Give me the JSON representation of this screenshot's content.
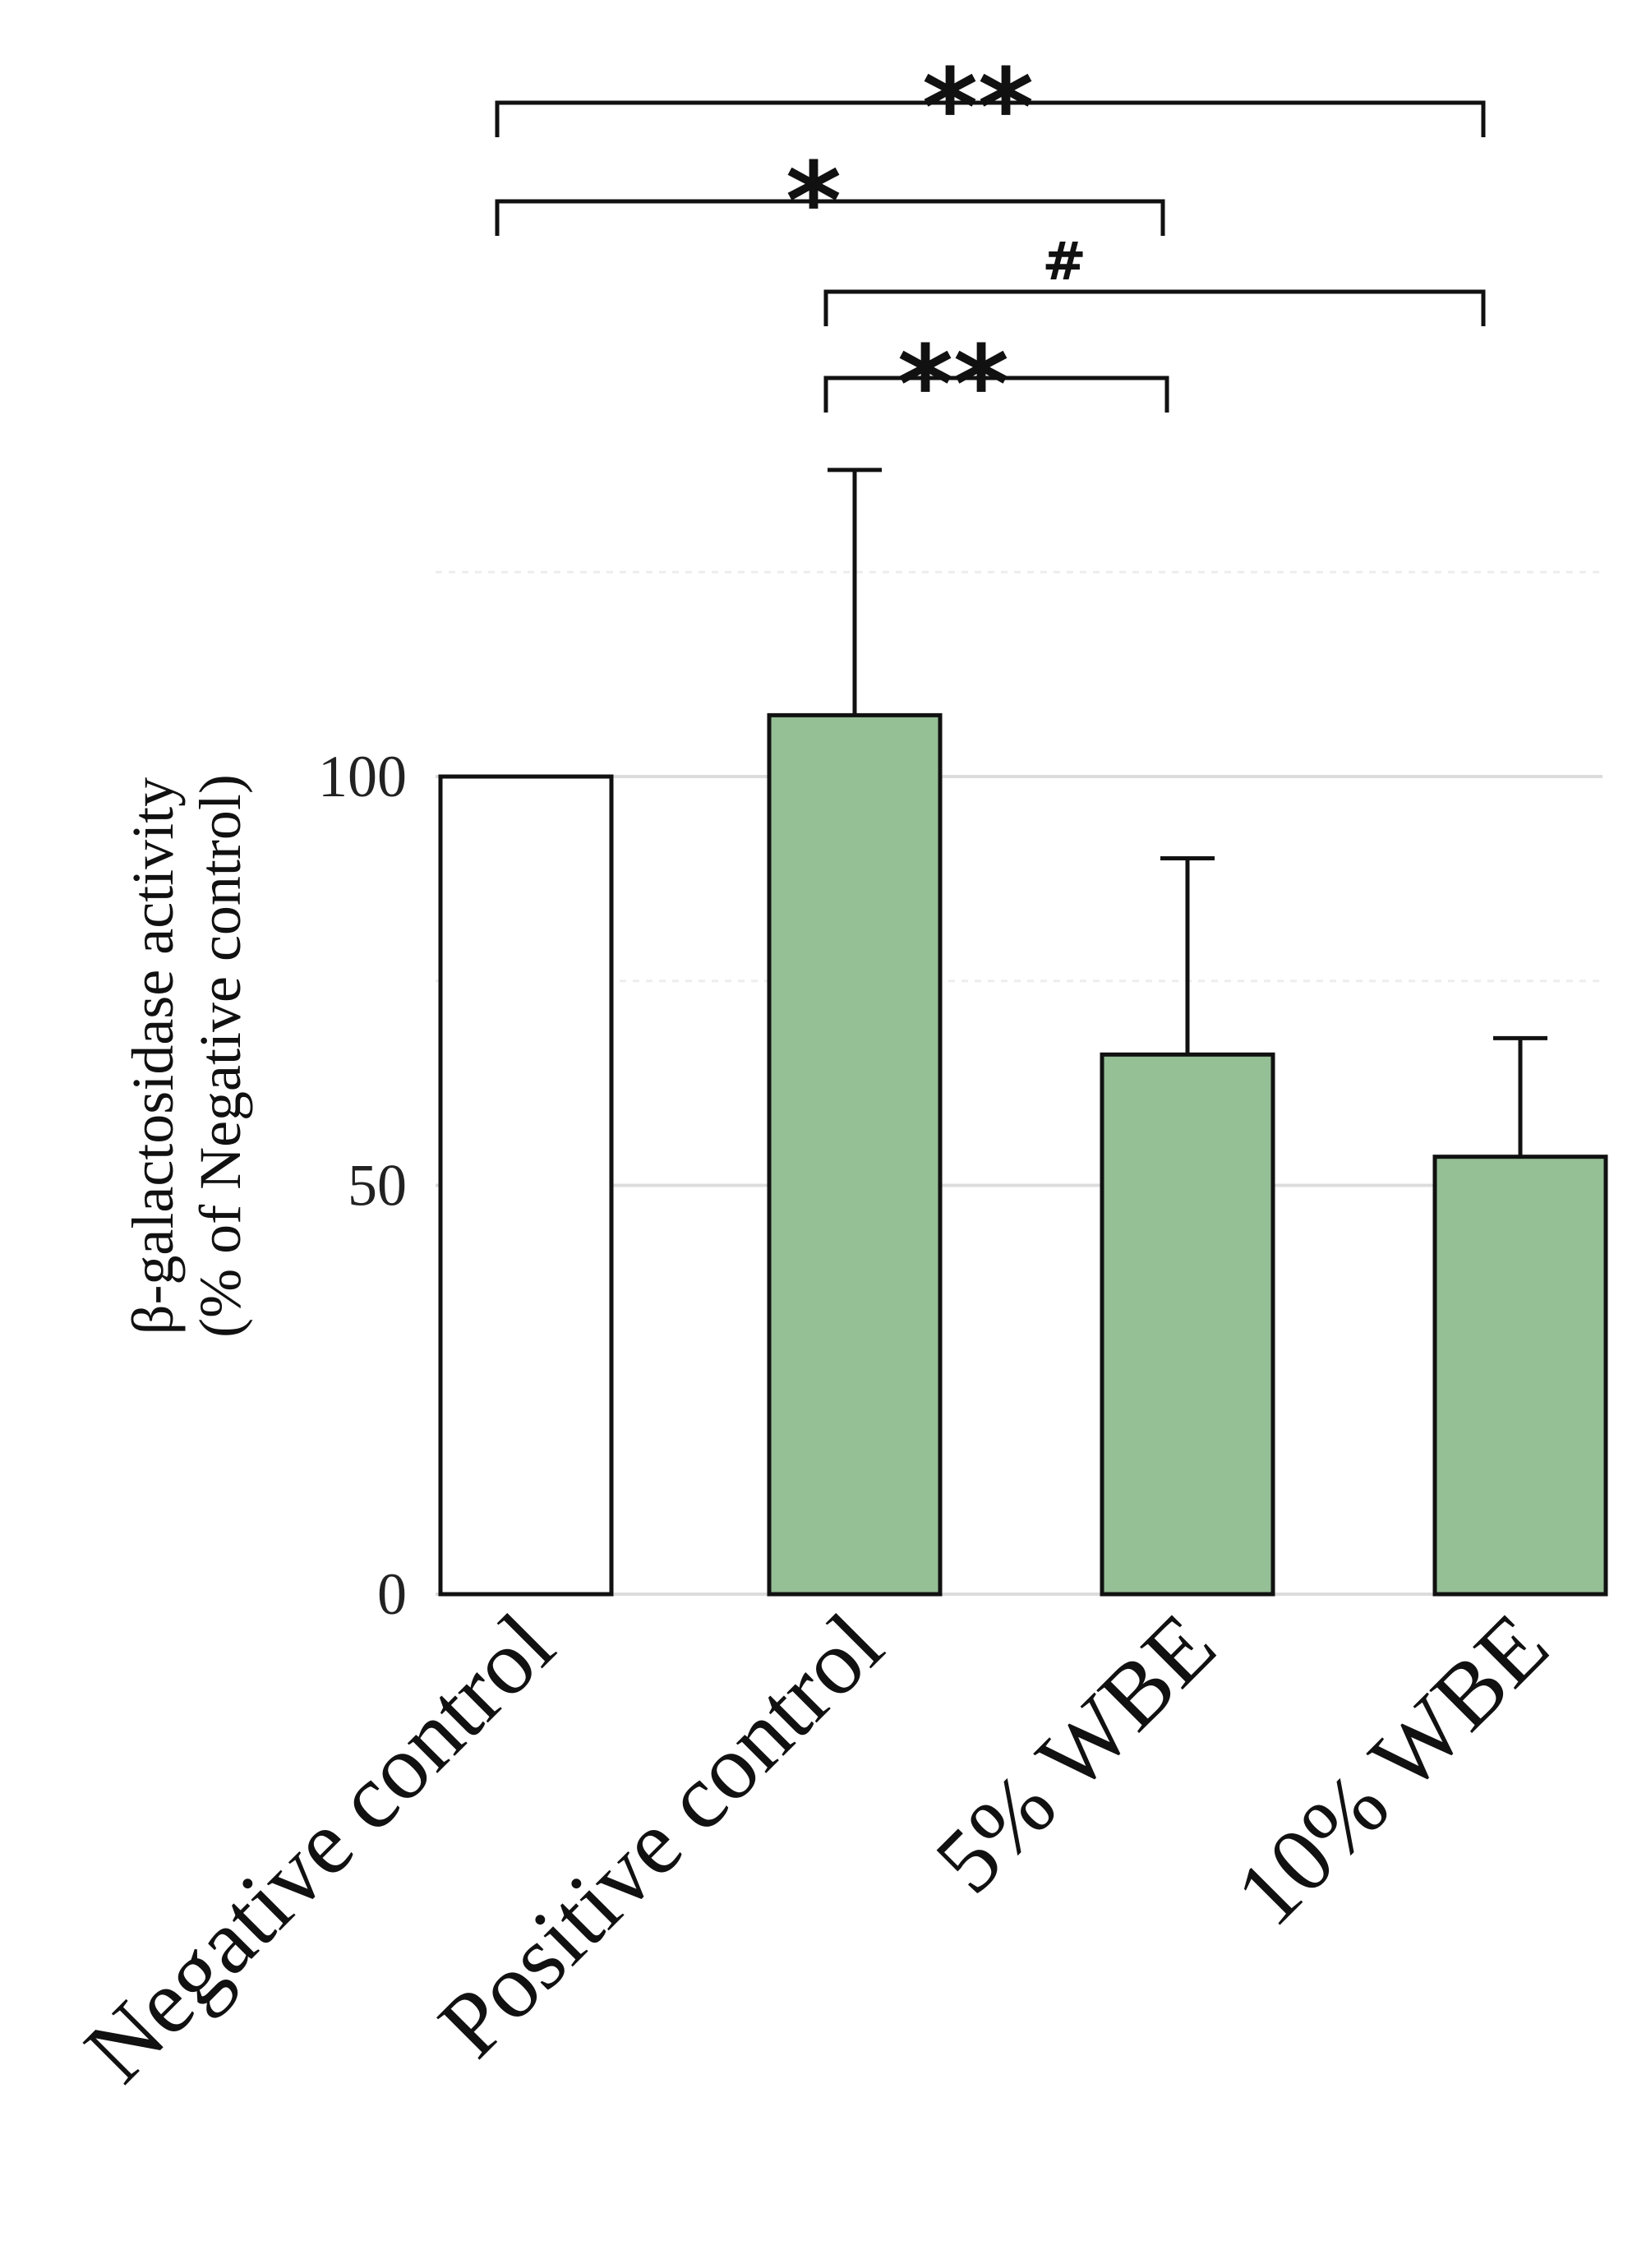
{
  "chart_data": {
    "type": "bar",
    "categories": [
      "Negative control",
      "Positive control",
      "5% WBE",
      "10% WBE"
    ],
    "values": [
      100,
      107.5,
      66,
      53.5
    ],
    "errors": [
      0,
      30,
      24,
      14.5
    ],
    "bar_colors": [
      "#ffffff",
      "#95bf95",
      "#95bf95",
      "#95bf95"
    ],
    "bar_edge_color": "#111111",
    "ylabel_lines": [
      "β-galactosidase activity",
      "(% of Negative control)"
    ],
    "yticks": [
      0,
      50,
      100
    ],
    "ylim": [
      0,
      125
    ],
    "grid": true,
    "gridlines": [
      0,
      50,
      75,
      100,
      125
    ],
    "significance": [
      {
        "from": 0,
        "to": 3,
        "label": "**"
      },
      {
        "from": 0,
        "to": 2,
        "label": "*"
      },
      {
        "from": 1,
        "to": 3,
        "label": "#"
      },
      {
        "from": 1,
        "to": 2,
        "label": "**"
      }
    ]
  }
}
